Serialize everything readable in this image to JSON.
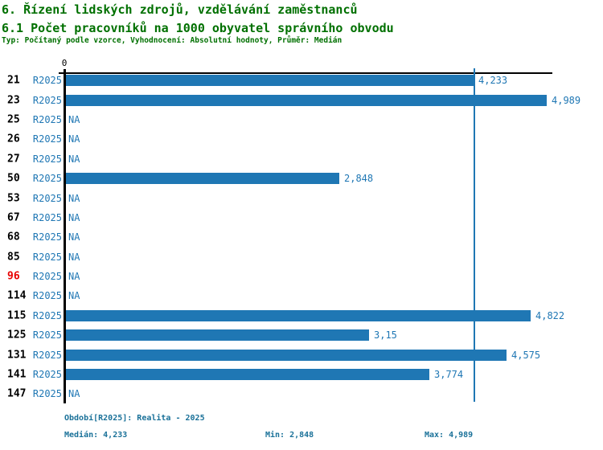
{
  "header": {
    "title1": "6. Řízení lidských zdrojů, vzdělávání zaměstnanců",
    "title2": "6.1 Počet pracovníků na 1000 obyvatel správního obvodu",
    "subtitle": "Typ: Počítaný podle vzorce, Vyhodnocení: Absolutní hodnoty, Průměr: Medián"
  },
  "colors": {
    "title_green": "#007000",
    "bar_blue": "#1F77B4",
    "footer_blue": "#1A7199",
    "highlight_red": "#E80000",
    "axis_black": "#000000"
  },
  "chart_data": {
    "type": "bar",
    "orientation": "horizontal",
    "title": "6.1 Počet pracovníků na 1000 obyvatel správního obvodu",
    "xlabel": "",
    "ylabel": "",
    "x_axis": {
      "zero_label": "0",
      "min": 0,
      "max": 5.05,
      "grid": false
    },
    "median_line_value": 4.233,
    "stats": {
      "median": 4.233,
      "min": 2.848,
      "max": 4.989
    },
    "rows": [
      {
        "label": "21",
        "period": "R2025",
        "value": 4.233,
        "display": "4,233",
        "highlight": false
      },
      {
        "label": "23",
        "period": "R2025",
        "value": 4.989,
        "display": "4,989",
        "highlight": false
      },
      {
        "label": "25",
        "period": "R2025",
        "value": null,
        "display": "NA",
        "highlight": false
      },
      {
        "label": "26",
        "period": "R2025",
        "value": null,
        "display": "NA",
        "highlight": false
      },
      {
        "label": "27",
        "period": "R2025",
        "value": null,
        "display": "NA",
        "highlight": false
      },
      {
        "label": "50",
        "period": "R2025",
        "value": 2.848,
        "display": "2,848",
        "highlight": false
      },
      {
        "label": "53",
        "period": "R2025",
        "value": null,
        "display": "NA",
        "highlight": false
      },
      {
        "label": "67",
        "period": "R2025",
        "value": null,
        "display": "NA",
        "highlight": false
      },
      {
        "label": "68",
        "period": "R2025",
        "value": null,
        "display": "NA",
        "highlight": false
      },
      {
        "label": "85",
        "period": "R2025",
        "value": null,
        "display": "NA",
        "highlight": false
      },
      {
        "label": "96",
        "period": "R2025",
        "value": null,
        "display": "NA",
        "highlight": true
      },
      {
        "label": "114",
        "period": "R2025",
        "value": null,
        "display": "NA",
        "highlight": false
      },
      {
        "label": "115",
        "period": "R2025",
        "value": 4.822,
        "display": "4,822",
        "highlight": false
      },
      {
        "label": "125",
        "period": "R2025",
        "value": 3.15,
        "display": "3,15",
        "highlight": false
      },
      {
        "label": "131",
        "period": "R2025",
        "value": 4.575,
        "display": "4,575",
        "highlight": false
      },
      {
        "label": "141",
        "period": "R2025",
        "value": 3.774,
        "display": "3,774",
        "highlight": false
      },
      {
        "label": "147",
        "period": "R2025",
        "value": null,
        "display": "NA",
        "highlight": false
      }
    ]
  },
  "footer": {
    "period_line": "Období[R2025]: Realita - 2025",
    "median": "Medián: 4,233",
    "min": "Min: 2,848",
    "max": "Max: 4,989"
  }
}
